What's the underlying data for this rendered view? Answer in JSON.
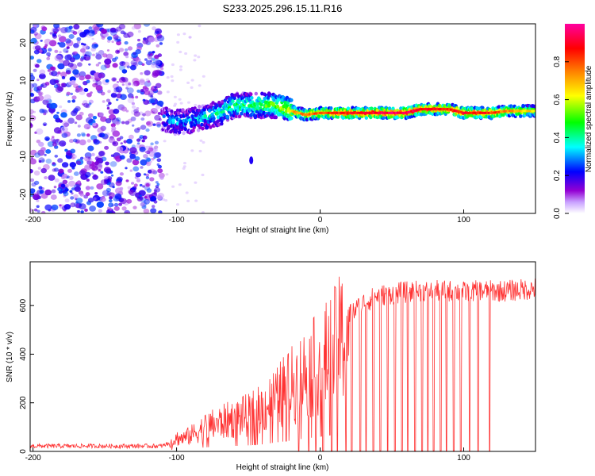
{
  "title": "S233.2025.296.15.11.R16",
  "chart_data": [
    {
      "type": "heatmap",
      "xlabel": "Height of straight line (km)",
      "ylabel": "Frequency (Hz)",
      "xlim": [
        -202,
        150
      ],
      "ylim": [
        -25,
        25
      ],
      "xticks": [
        -200,
        -100,
        0,
        100
      ],
      "yticks": [
        -20,
        -10,
        0,
        10,
        20
      ],
      "colorbar": {
        "label": "Normalized spectral amplitude",
        "range": [
          0,
          1
        ],
        "ticks": [
          0.0,
          0.2,
          0.4,
          0.6,
          0.8
        ],
        "tick_labels": [
          "0.0",
          "0.2",
          "0.4",
          "0.6",
          "0.8"
        ],
        "colors": [
          "#ffffff",
          "#9400d3",
          "#0000ff",
          "#00ffff",
          "#00ff00",
          "#ffff00",
          "#ff7f00",
          "#ff0000",
          "#ff00a0"
        ]
      },
      "noise_region_x": [
        -202,
        -110
      ],
      "signal_ridge": {
        "x": [
          -110,
          -100,
          -90,
          -80,
          -70,
          -60,
          -50,
          -40,
          -30,
          -20,
          -10,
          0,
          10,
          20,
          30,
          40,
          50,
          60,
          70,
          80,
          90,
          100,
          110,
          120,
          130,
          140,
          150
        ],
        "freq": [
          0.0,
          -1.0,
          -0.5,
          0.5,
          1.5,
          3.5,
          3.5,
          3.5,
          3.5,
          2.0,
          1.0,
          1.5,
          1.5,
          1.5,
          1.5,
          1.5,
          1.5,
          1.5,
          2.5,
          2.5,
          2.5,
          1.5,
          1.5,
          1.5,
          2.0,
          2.0,
          2.0
        ],
        "amplitude": [
          0.25,
          0.3,
          0.3,
          0.35,
          0.4,
          0.45,
          0.45,
          0.5,
          0.55,
          0.65,
          0.75,
          0.75,
          0.8,
          0.85,
          0.85,
          0.9,
          0.9,
          0.9,
          0.85,
          0.85,
          0.8,
          0.85,
          0.85,
          0.8,
          0.7,
          0.65,
          0.6
        ]
      }
    },
    {
      "type": "line",
      "xlabel": "Height of straight line (km)",
      "ylabel": "SNR (10 * v/v)",
      "xlim": [
        -202,
        150
      ],
      "ylim": [
        0,
        780
      ],
      "xticks": [
        -200,
        -100,
        0,
        100
      ],
      "yticks": [
        0,
        200,
        400,
        600
      ],
      "color": "#ff3333",
      "trend": {
        "x": [
          -202,
          -150,
          -110,
          -105,
          -100,
          -95,
          -90,
          -80,
          -70,
          -60,
          -50,
          -40,
          -30,
          -20,
          -10,
          0,
          10,
          20,
          30,
          40,
          50,
          60,
          70,
          80,
          90,
          100,
          110,
          120,
          130,
          140,
          150
        ],
        "snr": [
          22,
          22,
          22,
          35,
          60,
          60,
          75,
          110,
          130,
          150,
          165,
          195,
          250,
          300,
          360,
          400,
          470,
          560,
          610,
          640,
          650,
          655,
          660,
          660,
          660,
          655,
          660,
          660,
          660,
          665,
          670
        ]
      },
      "dropouts_x": [
        -15,
        -8,
        -3,
        2,
        8,
        12,
        18,
        22,
        28,
        32,
        37,
        42,
        47,
        52,
        57,
        61,
        66,
        71,
        75,
        79,
        84,
        88,
        93,
        98,
        104,
        110,
        118
      ]
    }
  ]
}
